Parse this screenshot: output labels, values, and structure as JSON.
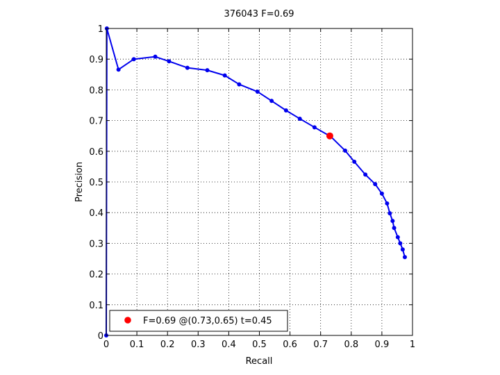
{
  "chart_data": {
    "type": "line",
    "title": "376043 F=0.69",
    "xlabel": "Recall",
    "ylabel": "Precision",
    "xlim": [
      0,
      1
    ],
    "ylim": [
      0,
      1
    ],
    "xticks": [
      "0",
      "0.1",
      "0.2",
      "0.3",
      "0.4",
      "0.5",
      "0.6",
      "0.7",
      "0.8",
      "0.9",
      "1"
    ],
    "yticks": [
      "0",
      "0.1",
      "0.2",
      "0.3",
      "0.4",
      "0.5",
      "0.6",
      "0.7",
      "0.8",
      "0.9",
      "1"
    ],
    "grid": true,
    "grid_style": "dotted",
    "series": [
      {
        "color": "#0000ee",
        "marker": "dot",
        "points": [
          [
            0.0,
            0.0
          ],
          [
            0.002,
            1.0
          ],
          [
            0.04,
            0.866
          ],
          [
            0.09,
            0.9
          ],
          [
            0.16,
            0.908
          ],
          [
            0.205,
            0.893
          ],
          [
            0.265,
            0.872
          ],
          [
            0.33,
            0.864
          ],
          [
            0.387,
            0.847
          ],
          [
            0.434,
            0.818
          ],
          [
            0.494,
            0.794
          ],
          [
            0.54,
            0.764
          ],
          [
            0.587,
            0.733
          ],
          [
            0.632,
            0.706
          ],
          [
            0.68,
            0.678
          ],
          [
            0.733,
            0.648
          ],
          [
            0.78,
            0.602
          ],
          [
            0.81,
            0.566
          ],
          [
            0.846,
            0.524
          ],
          [
            0.878,
            0.493
          ],
          [
            0.9,
            0.462
          ],
          [
            0.917,
            0.43
          ],
          [
            0.926,
            0.398
          ],
          [
            0.935,
            0.373
          ],
          [
            0.94,
            0.35
          ],
          [
            0.952,
            0.32
          ],
          [
            0.96,
            0.3
          ],
          [
            0.968,
            0.28
          ],
          [
            0.975,
            0.255
          ]
        ]
      }
    ],
    "highlight": {
      "x": 0.73,
      "y": 0.65,
      "color": "#ff0000"
    },
    "legend": {
      "position": "bottom-left",
      "text": "F=0.69 @(0.73,0.65) t=0.45",
      "marker_color": "#ff0000"
    }
  }
}
